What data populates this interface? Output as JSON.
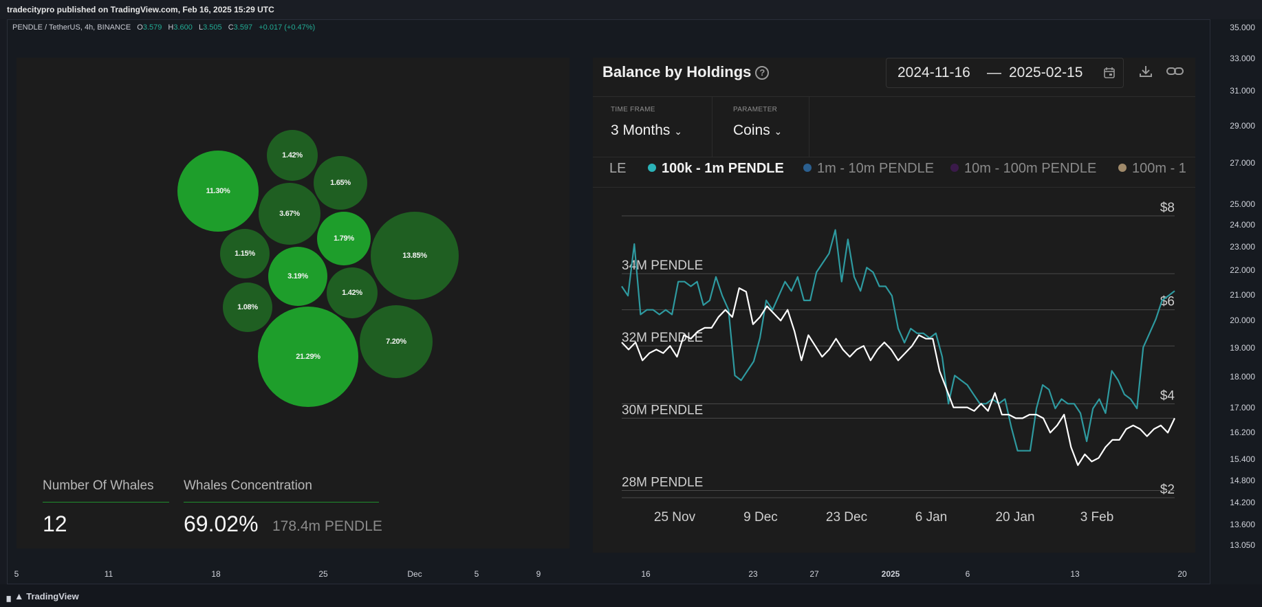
{
  "header": {
    "published": "tradecitypro published on TradingView.com, Feb 16, 2025 15:29 UTC"
  },
  "symbol": {
    "name": "PENDLE / TetherUS, 4h, BINANCE",
    "o_label": "O",
    "o": "3.579",
    "h_label": "H",
    "h": "3.600",
    "l_label": "L",
    "l": "3.505",
    "c_label": "C",
    "c": "3.597",
    "change": "+0.017 (+0.47%)"
  },
  "price_axis": [
    "35.000",
    "33.000",
    "31.000",
    "29.000",
    "27.000",
    "25.000",
    "24.000",
    "23.000",
    "22.000",
    "21.000",
    "20.000",
    "19.000",
    "18.000",
    "17.000",
    "16.200",
    "15.400",
    "14.800",
    "14.200",
    "13.600",
    "13.050"
  ],
  "time_axis": [
    "5",
    "11",
    "18",
    "25",
    "Dec",
    "5",
    "9",
    "16",
    "23",
    "27",
    "2025",
    "6",
    "13",
    "20"
  ],
  "footer": {
    "brand": "TradingView"
  },
  "colors": {
    "teal": "#22ab94",
    "bubble_bright": "#1e9e2b",
    "bubble_dark": "#1f5f22",
    "line_teal": "#2e9aa0",
    "line_white": "#ffffff"
  },
  "whales": {
    "bubbles": [
      "11.30%",
      "1.42%",
      "1.65%",
      "3.67%",
      "1.79%",
      "1.15%",
      "13.85%",
      "3.19%",
      "1.42%",
      "1.08%",
      "7.20%",
      "21.29%"
    ],
    "number_label": "Number Of Whales",
    "number_value": "12",
    "concentration_label": "Whales Concentration",
    "concentration_value": "69.02%",
    "concentration_sub": "178.4m PENDLE"
  },
  "holdings": {
    "title": "Balance by Holdings",
    "date_from": "2024-11-16",
    "date_sep": "—",
    "date_to": "2025-02-15",
    "timeframe_label": "TIME FRAME",
    "timeframe_value": "3 Months",
    "parameter_label": "PARAMETER",
    "parameter_value": "Coins",
    "legend": [
      "LE",
      "100k - 1m PENDLE",
      "1m - 10m PENDLE",
      "10m - 100m PENDLE",
      "100m - 1"
    ],
    "legend_colors": [
      "#d0d0d0",
      "#2bb3b8",
      "#2b5f8f",
      "#3a1a4a",
      "#a08a6a"
    ]
  },
  "chart_data": {
    "type": "line",
    "x_ticks": [
      "25 Nov",
      "9 Dec",
      "23 Dec",
      "6 Jan",
      "20 Jan",
      "3 Feb"
    ],
    "y_left_ticks": [
      "34M PENDLE",
      "32M PENDLE",
      "30M PENDLE",
      "28M PENDLE"
    ],
    "y_right_ticks": [
      "$8",
      "$6",
      "$4",
      "$2"
    ],
    "y_left_range": [
      27.8,
      35.6
    ],
    "y_right_range": [
      2,
      8
    ],
    "series": [
      {
        "name": "100k - 1m PENDLE",
        "color": "#2e9aa0",
        "axis": "right",
        "values": [
          6.5,
          6.3,
          7.4,
          5.9,
          6.0,
          6.0,
          5.9,
          6.0,
          5.9,
          6.6,
          6.6,
          6.5,
          6.6,
          6.1,
          6.2,
          6.7,
          6.3,
          6.0,
          4.6,
          4.5,
          4.7,
          4.9,
          5.4,
          6.2,
          6.0,
          6.3,
          6.6,
          6.4,
          6.7,
          6.2,
          6.2,
          6.8,
          7.0,
          7.2,
          7.7,
          6.6,
          7.5,
          6.7,
          6.4,
          6.9,
          6.8,
          6.5,
          6.5,
          6.3,
          5.6,
          5.3,
          5.6,
          5.5,
          5.5,
          5.4,
          5.5,
          5.0,
          4.0,
          4.6,
          4.5,
          4.4,
          4.2,
          4.0,
          4.0,
          4.1,
          4.0,
          4.1,
          3.5,
          3.0,
          3.0,
          3.0,
          3.9,
          4.4,
          4.3,
          3.9,
          4.1,
          4.0,
          4.0,
          3.8,
          3.2,
          3.9,
          4.1,
          3.8,
          4.7,
          4.5,
          4.2,
          4.1,
          3.9,
          5.2,
          5.5,
          5.8,
          6.2,
          6.3,
          6.4
        ]
      },
      {
        "name": "",
        "color": "#ffffff",
        "axis": "left",
        "values": [
          32.1,
          31.9,
          32.1,
          31.6,
          31.8,
          31.9,
          31.8,
          32.0,
          31.7,
          32.3,
          32.2,
          32.4,
          32.5,
          32.5,
          32.8,
          33.0,
          32.8,
          33.6,
          33.5,
          32.6,
          32.8,
          33.1,
          32.9,
          32.7,
          33.0,
          32.4,
          31.6,
          32.3,
          32.0,
          31.7,
          31.9,
          32.2,
          31.9,
          31.7,
          31.9,
          32.0,
          31.6,
          31.9,
          32.1,
          31.9,
          31.6,
          31.8,
          32.0,
          32.3,
          32.2,
          32.2,
          31.3,
          30.8,
          30.3,
          30.3,
          30.3,
          30.2,
          30.4,
          30.2,
          30.7,
          30.1,
          30.1,
          30.0,
          30.0,
          30.1,
          30.1,
          30.0,
          29.6,
          29.8,
          30.1,
          29.2,
          28.7,
          29.0,
          28.8,
          28.9,
          29.2,
          29.4,
          29.4,
          29.7,
          29.8,
          29.7,
          29.5,
          29.7,
          29.8,
          29.6,
          30.0
        ]
      }
    ]
  }
}
